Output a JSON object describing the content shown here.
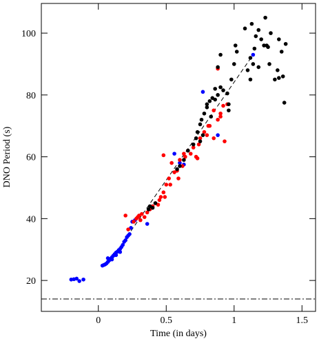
{
  "chart_data": {
    "type": "scatter",
    "xlabel": "Time (in days)",
    "ylabel": "DNO Period (s)",
    "xlim": [
      -0.42,
      1.6
    ],
    "ylim": [
      10,
      109.6
    ],
    "xticks": [
      0,
      0.5,
      1,
      1.5
    ],
    "yticks": [
      20,
      40,
      60,
      80,
      100
    ],
    "fit_line": {
      "x": [
        0.24,
        1.14
      ],
      "values": [
        36,
        93
      ]
    },
    "threshold": 14,
    "series": [
      {
        "color": "#0000ff",
        "x": [
          -0.2,
          -0.18,
          -0.16,
          -0.14,
          -0.11,
          0.03,
          0.04,
          0.05,
          0.06,
          0.07,
          0.08,
          0.09,
          0.1,
          0.11,
          0.12,
          0.13,
          0.14,
          0.15,
          0.16,
          0.17,
          0.18,
          0.19,
          0.2,
          0.21,
          0.22,
          0.23,
          0.24,
          0.25,
          0.27,
          0.36,
          0.56,
          0.6,
          0.63,
          0.77,
          0.88,
          1.14,
          0.07,
          0.1,
          0.13,
          0.16
        ],
        "values": [
          20.3,
          20.4,
          20.6,
          19.8,
          20.3,
          24.8,
          25,
          25.2,
          25.5,
          26,
          26.5,
          27,
          27.5,
          28,
          28.5,
          29,
          29.3,
          29.8,
          30.2,
          30.8,
          31.5,
          32.5,
          33,
          34,
          34.5,
          35,
          37,
          39,
          39.5,
          38.3,
          61,
          58,
          57.5,
          81,
          67,
          93,
          27.2,
          26.8,
          28.2,
          29.2
        ]
      },
      {
        "color": "#ff0000",
        "x": [
          0.2,
          0.22,
          0.26,
          0.28,
          0.3,
          0.32,
          0.34,
          0.36,
          0.38,
          0.4,
          0.42,
          0.44,
          0.46,
          0.48,
          0.5,
          0.52,
          0.53,
          0.54,
          0.56,
          0.58,
          0.6,
          0.62,
          0.64,
          0.66,
          0.68,
          0.7,
          0.72,
          0.74,
          0.75,
          0.78,
          0.8,
          0.82,
          0.85,
          0.88,
          0.9,
          0.92,
          0.93,
          0.95,
          0.9,
          0.49,
          0.45,
          0.29,
          0.31,
          0.63,
          0.73,
          0.88,
          0.85,
          0.48,
          0.59,
          0.81
        ],
        "values": [
          41,
          36.5,
          39,
          40,
          41,
          41.5,
          40.5,
          42,
          43,
          44,
          45,
          44.5,
          47,
          48.5,
          51,
          53,
          51,
          58,
          55,
          55.5,
          59,
          57,
          60,
          62,
          61,
          63,
          60,
          64,
          66,
          68,
          67,
          70,
          66,
          72,
          74,
          76.5,
          65,
          77,
          73,
          47,
          46,
          40.5,
          39.5,
          61,
          59.5,
          88.5,
          75,
          60.5,
          53,
          70
        ]
      },
      {
        "color": "#000000",
        "x": [
          0.37,
          0.38,
          0.4,
          0.42,
          0.58,
          0.6,
          0.63,
          0.66,
          0.7,
          0.72,
          0.73,
          0.75,
          0.76,
          0.78,
          0.8,
          0.82,
          0.84,
          0.86,
          0.88,
          0.9,
          0.92,
          0.95,
          0.96,
          0.98,
          1.0,
          1.01,
          1.02,
          0.9,
          0.88,
          0.96,
          1.08,
          1.1,
          1.12,
          1.13,
          1.15,
          1.16,
          1.18,
          1.2,
          1.22,
          1.23,
          1.24,
          1.25,
          1.27,
          1.3,
          1.32,
          1.33,
          1.35,
          1.36,
          1.37,
          1.38,
          1.12,
          1.14,
          1.18,
          1.26,
          1.33,
          0.75,
          0.8,
          0.86,
          0.83,
          0.77
        ],
        "values": [
          43,
          44,
          43.5,
          45,
          56,
          57,
          59,
          62,
          64,
          66,
          68,
          70.5,
          72,
          74,
          77,
          78,
          79,
          82,
          80,
          82.5,
          81.5,
          80.5,
          75,
          85,
          90,
          96,
          94,
          93,
          89,
          77,
          101.5,
          88,
          92,
          103,
          95,
          99,
          101,
          98,
          96,
          105,
          96,
          95.5,
          100,
          85,
          88,
          98,
          94,
          86,
          77.5,
          96.5,
          85,
          90,
          89,
          90,
          85.5,
          65,
          76,
          78.5,
          73,
          67
        ]
      }
    ]
  }
}
